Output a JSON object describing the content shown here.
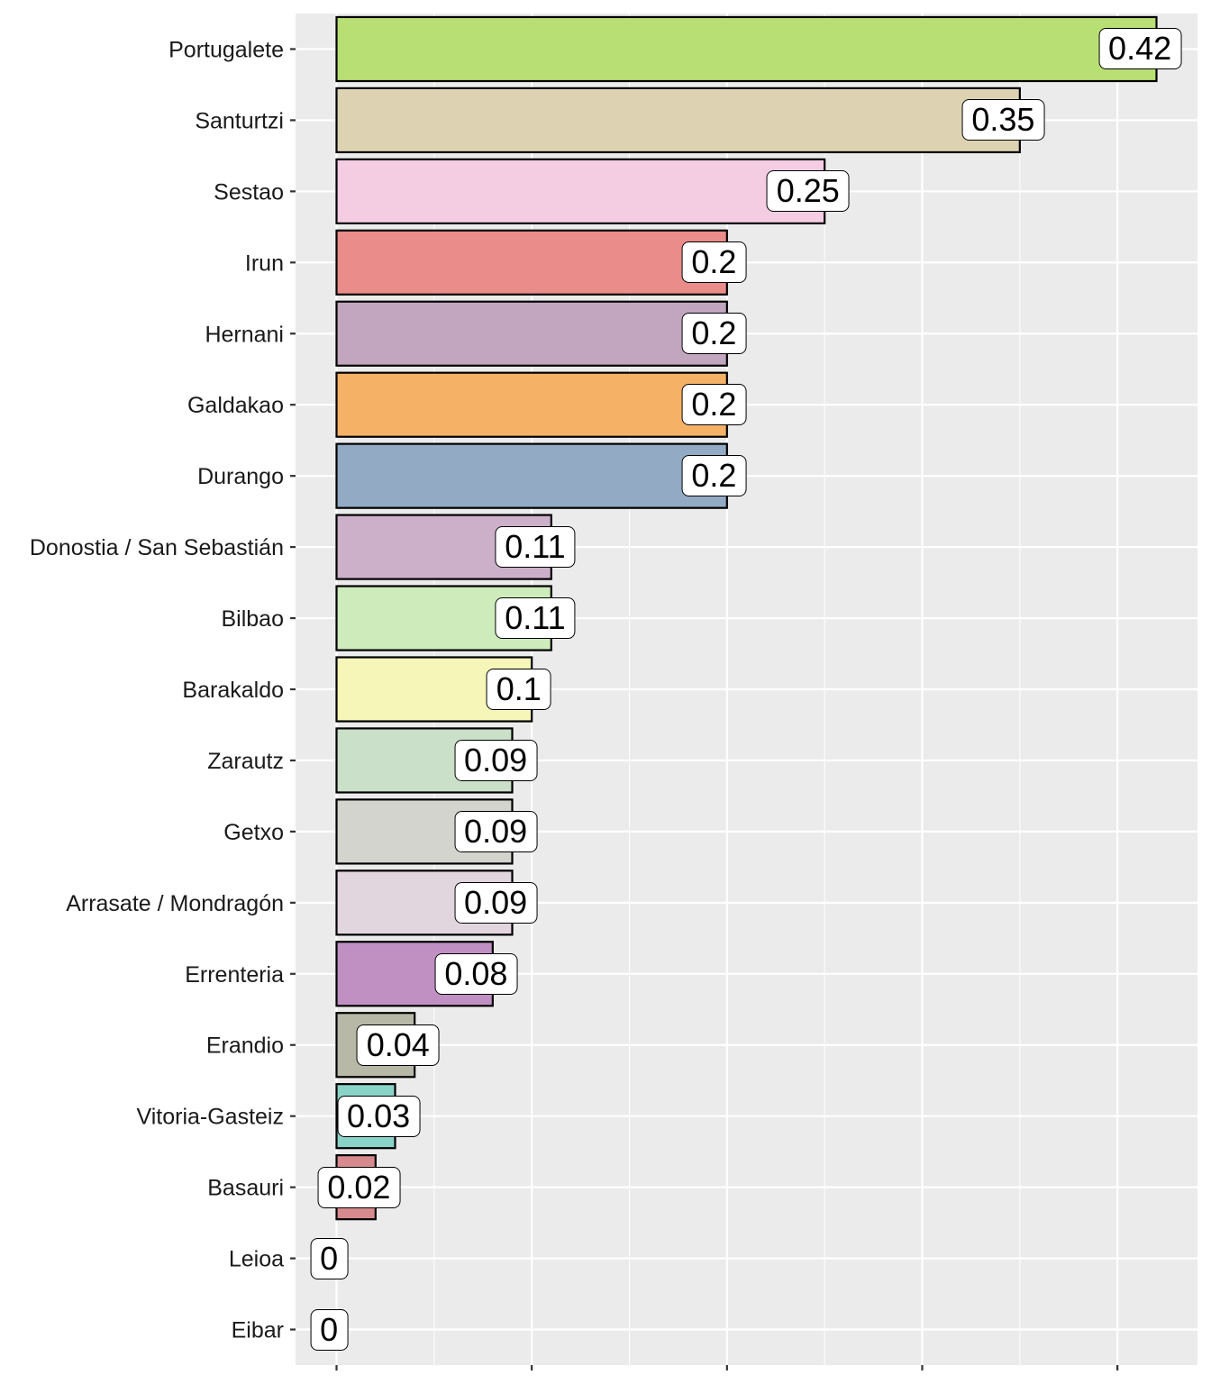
{
  "chart_data": {
    "type": "bar",
    "orientation": "horizontal",
    "title": "",
    "xlabel": "",
    "ylabel": "",
    "xlim": [
      -0.021,
      0.441
    ],
    "x_ticks": [
      0,
      0.1,
      0.2,
      0.3,
      0.4
    ],
    "x_tick_labels_shown": false,
    "grid": true,
    "legend": "none",
    "categories": [
      "Portugalete",
      "Santurtzi",
      "Sestao",
      "Irun",
      "Hernani",
      "Galdakao",
      "Durango",
      "Donostia / San Sebastián",
      "Bilbao",
      "Barakaldo",
      "Zarautz",
      "Getxo",
      "Arrasate / Mondragón",
      "Errenteria",
      "Erandio",
      "Vitoria-Gasteiz",
      "Basauri",
      "Leioa",
      "Eibar"
    ],
    "values": [
      0.42,
      0.35,
      0.25,
      0.2,
      0.2,
      0.2,
      0.2,
      0.11,
      0.11,
      0.1,
      0.09,
      0.09,
      0.09,
      0.08,
      0.04,
      0.03,
      0.02,
      0,
      0
    ],
    "data_labels": [
      "0.42",
      "0.35",
      "0.25",
      "0.2",
      "0.2",
      "0.2",
      "0.2",
      "0.11",
      "0.11",
      "0.1",
      "0.09",
      "0.09",
      "0.09",
      "0.08",
      "0.04",
      "0.03",
      "0.02",
      "0",
      "0"
    ],
    "colors": [
      "#b8df74",
      "#ddd3b3",
      "#f4cde3",
      "#ea8c8a",
      "#c2a5be",
      "#f5b266",
      "#92aac4",
      "#ccafc9",
      "#cdebbb",
      "#f5f6b8",
      "#cae0c8",
      "#d4d4ce",
      "#e1d5de",
      "#c090c3",
      "#b7b8a6",
      "#8ad3c8",
      "#d68a8e",
      "#e6e6e6",
      "#e6e6e6"
    ],
    "panel_background": "#ebebeb",
    "gridline_color": "#ffffff"
  }
}
